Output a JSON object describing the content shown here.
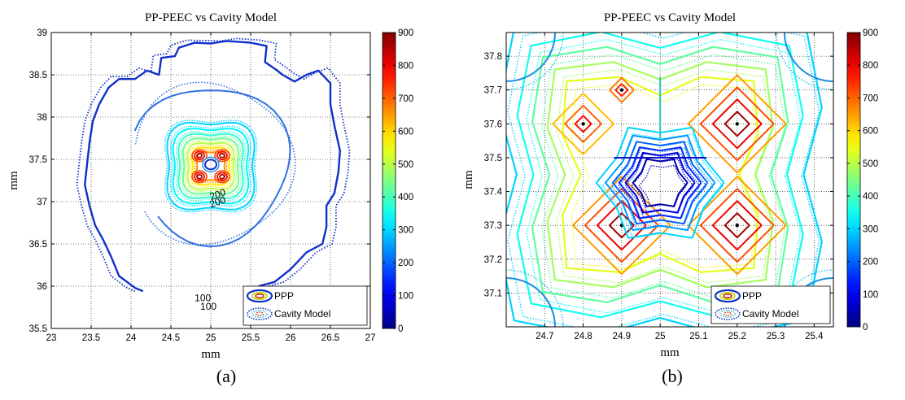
{
  "chart_data": [
    {
      "type": "contour",
      "panel_label": "(a)",
      "title": "PP-PEEC vs Cavity Model",
      "xlabel": "mm",
      "ylabel": "mm",
      "xlim": [
        23,
        27
      ],
      "ylim": [
        35.5,
        39
      ],
      "xticks": [
        "23",
        "23.5",
        "24",
        "24.5",
        "25",
        "25.5",
        "26",
        "26.5",
        "27"
      ],
      "yticks": [
        "35.5",
        "36",
        "36.5",
        "37",
        "37.5",
        "38",
        "38.5",
        "39"
      ],
      "grid": true,
      "legend": {
        "placement": "bottom-right",
        "entries": [
          "PPP",
          "Cavity Model"
        ]
      },
      "series": [
        {
          "name": "PPP",
          "style": "solid"
        },
        {
          "name": "Cavity Model",
          "style": "dotted"
        }
      ],
      "contour_labels": [
        {
          "text": "200",
          "x": 25.1,
          "y": 37.05
        },
        {
          "text": "200",
          "x": 25.1,
          "y": 36.96
        },
        {
          "text": "100",
          "x": 24.9,
          "y": 35.82
        },
        {
          "text": "100",
          "x": 24.97,
          "y": 35.72
        }
      ],
      "colorbar": {
        "min": 0,
        "max": 900,
        "ticks": [
          "0",
          "100",
          "200",
          "300",
          "400",
          "500",
          "600",
          "700",
          "800",
          "900"
        ],
        "colormap": "jet"
      }
    },
    {
      "type": "contour",
      "panel_label": "(b)",
      "title": "PP-PEEC vs Cavity Model",
      "xlabel": "mm",
      "ylabel": "mm",
      "xlim": [
        24.6,
        25.45
      ],
      "ylim": [
        37.0,
        37.87
      ],
      "xticks": [
        "24.7",
        "24.8",
        "24.9",
        "25",
        "25.1",
        "25.2",
        "25.3",
        "25.4"
      ],
      "yticks": [
        "37.1",
        "37.2",
        "37.3",
        "37.4",
        "37.5",
        "37.6",
        "37.7",
        "37.8"
      ],
      "grid": true,
      "legend": {
        "placement": "bottom-right",
        "entries": [
          "PPP",
          "Cavity Model"
        ]
      },
      "series": [
        {
          "name": "PPP",
          "style": "solid"
        },
        {
          "name": "Cavity Model",
          "style": "dotted"
        }
      ],
      "colorbar": {
        "min": 0,
        "max": 900,
        "ticks": [
          "0",
          "100",
          "200",
          "300",
          "400",
          "500",
          "600",
          "700",
          "800",
          "900"
        ],
        "colormap": "jet"
      }
    }
  ]
}
